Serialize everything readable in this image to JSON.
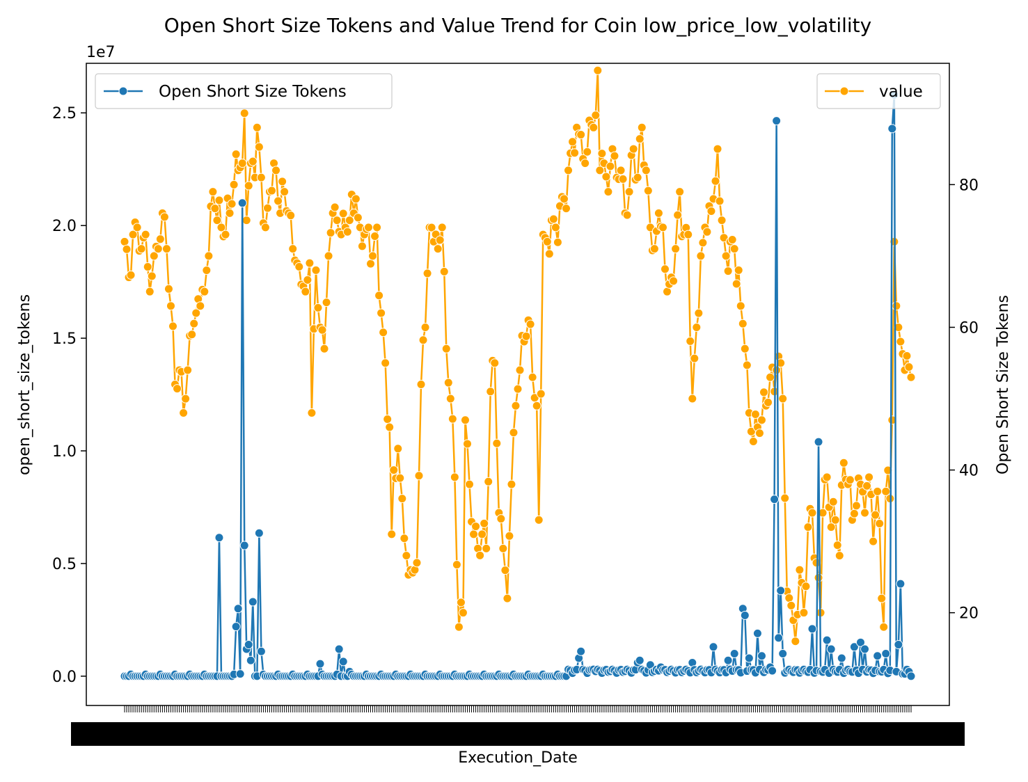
{
  "chart_data": {
    "type": "line",
    "title": "Open Short Size Tokens and Value Trend for Coin low_price_low_volatility",
    "xlabel": "Execution_Date",
    "ylabel_left": "open_short_size_tokens",
    "ylabel_right": "Open Short Size Tokens",
    "offset_text": "1e7",
    "x_count": 375,
    "x_tick_labels_overlapping": true,
    "left_axis": {
      "ylim": [
        -0.13,
        2.72
      ],
      "ticks": [
        0.0,
        0.5,
        1.0,
        1.5,
        2.0,
        2.5
      ],
      "tick_labels": [
        "0.0",
        "0.5",
        "1.0",
        "1.5",
        "2.0",
        "2.5"
      ]
    },
    "right_axis": {
      "ylim": [
        7.0,
        97.0
      ],
      "ticks": [
        20,
        40,
        60,
        80
      ],
      "tick_labels": [
        "20",
        "40",
        "60",
        "80"
      ]
    },
    "series": [
      {
        "name": "Open Short Size Tokens",
        "axis": "left",
        "color": "#1f77b4",
        "legend_position": "upper left",
        "spikes": [
          {
            "x": 45,
            "y": 0.615
          },
          {
            "x": 53,
            "y": 0.22
          },
          {
            "x": 54,
            "y": 0.3
          },
          {
            "x": 55,
            "y": 0.01
          },
          {
            "x": 56,
            "y": 2.1
          },
          {
            "x": 57,
            "y": 0.58
          },
          {
            "x": 58,
            "y": 0.12
          },
          {
            "x": 59,
            "y": 0.14
          },
          {
            "x": 60,
            "y": 0.07
          },
          {
            "x": 61,
            "y": 0.33
          },
          {
            "x": 64,
            "y": 0.635
          },
          {
            "x": 65,
            "y": 0.11
          },
          {
            "x": 93,
            "y": 0.055
          },
          {
            "x": 102,
            "y": 0.12
          },
          {
            "x": 104,
            "y": 0.065
          },
          {
            "x": 107,
            "y": 0.02
          },
          {
            "x": 216,
            "y": 0.08
          },
          {
            "x": 217,
            "y": 0.11
          },
          {
            "x": 223,
            "y": 0.03
          },
          {
            "x": 244,
            "y": 0.06
          },
          {
            "x": 245,
            "y": 0.07
          },
          {
            "x": 250,
            "y": 0.05
          },
          {
            "x": 255,
            "y": 0.04
          },
          {
            "x": 270,
            "y": 0.06
          },
          {
            "x": 280,
            "y": 0.13
          },
          {
            "x": 287,
            "y": 0.07
          },
          {
            "x": 290,
            "y": 0.1
          },
          {
            "x": 294,
            "y": 0.3
          },
          {
            "x": 295,
            "y": 0.27
          },
          {
            "x": 297,
            "y": 0.08
          },
          {
            "x": 301,
            "y": 0.19
          },
          {
            "x": 303,
            "y": 0.09
          },
          {
            "x": 307,
            "y": 0.04
          },
          {
            "x": 309,
            "y": 0.785
          },
          {
            "x": 310,
            "y": 2.465
          },
          {
            "x": 311,
            "y": 0.17
          },
          {
            "x": 312,
            "y": 0.38
          },
          {
            "x": 313,
            "y": 0.1
          },
          {
            "x": 327,
            "y": 0.21
          },
          {
            "x": 330,
            "y": 1.04
          },
          {
            "x": 334,
            "y": 0.16
          },
          {
            "x": 336,
            "y": 0.12
          },
          {
            "x": 341,
            "y": 0.08
          },
          {
            "x": 347,
            "y": 0.13
          },
          {
            "x": 350,
            "y": 0.15
          },
          {
            "x": 352,
            "y": 0.12
          },
          {
            "x": 358,
            "y": 0.09
          },
          {
            "x": 362,
            "y": 0.1
          },
          {
            "x": 365,
            "y": 2.43
          },
          {
            "x": 366,
            "y": 2.58
          },
          {
            "x": 367,
            "y": 0.02
          },
          {
            "x": 368,
            "y": 0.14
          },
          {
            "x": 369,
            "y": 0.41
          },
          {
            "x": 370,
            "y": 0.01
          },
          {
            "x": 371,
            "y": 0.01
          },
          {
            "x": 374,
            "y": 0.0
          }
        ]
      },
      {
        "name": "value",
        "axis": "right",
        "color": "#ffa500",
        "legend_position": "upper right",
        "anchors": [
          [
            0,
            72
          ],
          [
            2,
            67
          ],
          [
            4,
            73
          ],
          [
            6,
            74
          ],
          [
            8,
            71
          ],
          [
            10,
            73
          ],
          [
            12,
            65
          ],
          [
            14,
            70
          ],
          [
            16,
            71
          ],
          [
            18,
            76
          ],
          [
            20,
            71
          ],
          [
            22,
            63
          ],
          [
            24,
            52
          ],
          [
            26,
            54
          ],
          [
            28,
            48
          ],
          [
            30,
            54
          ],
          [
            32,
            59
          ],
          [
            34,
            62
          ],
          [
            36,
            63
          ],
          [
            38,
            65
          ],
          [
            40,
            70
          ],
          [
            42,
            79
          ],
          [
            44,
            75
          ],
          [
            46,
            74
          ],
          [
            48,
            73
          ],
          [
            50,
            76
          ],
          [
            52,
            80
          ],
          [
            54,
            82
          ],
          [
            56,
            83
          ],
          [
            57,
            90
          ],
          [
            58,
            75
          ],
          [
            60,
            83
          ],
          [
            62,
            81
          ],
          [
            63,
            88
          ],
          [
            65,
            81
          ],
          [
            67,
            74
          ],
          [
            69,
            79
          ],
          [
            71,
            83
          ],
          [
            72,
            82
          ],
          [
            74,
            76
          ],
          [
            76,
            79
          ],
          [
            78,
            76
          ],
          [
            80,
            71
          ],
          [
            82,
            69
          ],
          [
            84,
            66
          ],
          [
            86,
            65
          ],
          [
            88,
            69
          ],
          [
            89,
            48
          ],
          [
            91,
            68
          ],
          [
            93,
            60
          ],
          [
            95,
            57
          ],
          [
            97,
            70
          ],
          [
            99,
            76
          ],
          [
            101,
            75
          ],
          [
            103,
            73
          ],
          [
            105,
            74
          ],
          [
            107,
            75
          ],
          [
            109,
            76
          ],
          [
            110,
            78
          ],
          [
            112,
            74
          ],
          [
            114,
            73
          ],
          [
            116,
            74
          ],
          [
            118,
            70
          ],
          [
            120,
            74
          ],
          [
            122,
            62
          ],
          [
            124,
            55
          ],
          [
            126,
            46
          ],
          [
            127,
            31
          ],
          [
            128,
            40
          ],
          [
            130,
            43
          ],
          [
            132,
            36
          ],
          [
            134,
            28
          ],
          [
            136,
            26
          ],
          [
            138,
            26
          ],
          [
            139,
            27
          ],
          [
            141,
            52
          ],
          [
            143,
            60
          ],
          [
            145,
            74
          ],
          [
            147,
            72
          ],
          [
            149,
            71
          ],
          [
            151,
            74
          ],
          [
            153,
            57
          ],
          [
            155,
            50
          ],
          [
            157,
            39
          ],
          [
            159,
            18
          ],
          [
            161,
            20
          ],
          [
            162,
            47
          ],
          [
            164,
            38
          ],
          [
            166,
            31
          ],
          [
            168,
            29
          ],
          [
            170,
            31
          ],
          [
            172,
            29
          ],
          [
            174,
            51
          ],
          [
            176,
            55
          ],
          [
            178,
            34
          ],
          [
            180,
            29
          ],
          [
            182,
            22
          ],
          [
            184,
            38
          ],
          [
            186,
            49
          ],
          [
            188,
            54
          ],
          [
            190,
            58
          ],
          [
            192,
            61
          ],
          [
            194,
            53
          ],
          [
            196,
            49
          ],
          [
            197,
            33
          ],
          [
            199,
            73
          ],
          [
            201,
            72
          ],
          [
            203,
            75
          ],
          [
            205,
            74
          ],
          [
            207,
            77
          ],
          [
            209,
            78
          ],
          [
            211,
            82
          ],
          [
            213,
            86
          ],
          [
            215,
            88
          ],
          [
            217,
            87
          ],
          [
            219,
            83
          ],
          [
            221,
            89
          ],
          [
            223,
            88
          ],
          [
            225,
            96
          ],
          [
            226,
            82
          ],
          [
            228,
            83
          ],
          [
            230,
            79
          ],
          [
            232,
            85
          ],
          [
            234,
            81
          ],
          [
            236,
            82
          ],
          [
            238,
            76
          ],
          [
            240,
            79
          ],
          [
            242,
            85
          ],
          [
            244,
            81
          ],
          [
            246,
            88
          ],
          [
            248,
            82
          ],
          [
            250,
            74
          ],
          [
            252,
            71
          ],
          [
            254,
            76
          ],
          [
            256,
            74
          ],
          [
            258,
            65
          ],
          [
            260,
            67
          ],
          [
            262,
            71
          ],
          [
            264,
            79
          ],
          [
            266,
            73
          ],
          [
            268,
            73
          ],
          [
            270,
            50
          ],
          [
            272,
            60
          ],
          [
            274,
            70
          ],
          [
            276,
            74
          ],
          [
            278,
            77
          ],
          [
            280,
            78
          ],
          [
            282,
            85
          ],
          [
            284,
            75
          ],
          [
            286,
            70
          ],
          [
            288,
            72
          ],
          [
            290,
            71
          ],
          [
            292,
            68
          ],
          [
            293,
            63
          ],
          [
            295,
            57
          ],
          [
            297,
            48
          ],
          [
            299,
            44
          ],
          [
            301,
            46
          ],
          [
            303,
            47
          ],
          [
            305,
            49
          ],
          [
            307,
            53
          ],
          [
            309,
            51
          ],
          [
            310,
            54
          ],
          [
            312,
            55
          ],
          [
            313,
            50
          ],
          [
            315,
            23
          ],
          [
            317,
            21
          ],
          [
            319,
            16
          ],
          [
            321,
            26
          ],
          [
            323,
            20
          ],
          [
            325,
            32
          ],
          [
            327,
            34
          ],
          [
            329,
            27
          ],
          [
            331,
            20
          ],
          [
            332,
            34
          ],
          [
            334,
            39
          ],
          [
            336,
            32
          ],
          [
            338,
            33
          ],
          [
            340,
            28
          ],
          [
            342,
            41
          ],
          [
            344,
            38
          ],
          [
            346,
            33
          ],
          [
            348,
            35
          ],
          [
            350,
            38
          ],
          [
            352,
            34
          ],
          [
            354,
            39
          ],
          [
            356,
            30
          ],
          [
            358,
            37
          ],
          [
            360,
            22
          ],
          [
            361,
            18
          ],
          [
            362,
            37
          ],
          [
            364,
            36
          ],
          [
            365,
            47
          ],
          [
            366,
            72
          ],
          [
            367,
            63
          ],
          [
            368,
            60
          ],
          [
            369,
            58
          ],
          [
            371,
            54
          ],
          [
            372,
            56
          ],
          [
            374,
            53
          ]
        ]
      }
    ],
    "legend": {
      "left": {
        "label": "Open Short Size Tokens",
        "position": "upper left"
      },
      "right": {
        "label": "value",
        "position": "upper right"
      }
    },
    "grid": false
  }
}
